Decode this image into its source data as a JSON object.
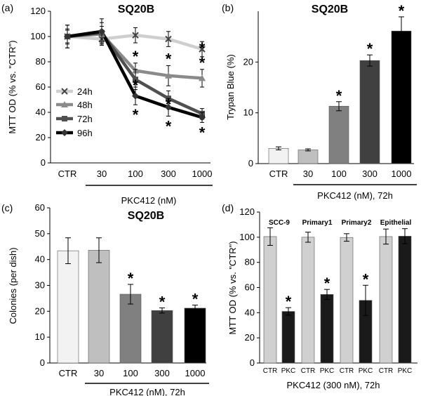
{
  "chart_data": [
    {
      "panel": "(a)",
      "type": "line",
      "title": "SQ20B",
      "ylabel": "MTT OD (% vs. \"CTR\")",
      "ylim": [
        0,
        120
      ],
      "yticks": [
        0,
        20,
        40,
        60,
        80,
        100,
        120
      ],
      "categories": [
        "CTR",
        "30",
        "100",
        "300",
        "1000"
      ],
      "xgroup_label": "PKC412 (nM)",
      "legend_position": "left-middle",
      "series": [
        {
          "name": "24h",
          "color": "#cfcfcf",
          "marker": "x",
          "values": [
            100,
            98,
            101,
            98,
            90
          ],
          "errors": [
            5,
            5,
            6,
            6,
            6
          ],
          "stars": [
            false,
            false,
            false,
            false,
            true
          ]
        },
        {
          "name": "48h",
          "color": "#8a8a8a",
          "marker": "triangle",
          "values": [
            100,
            102,
            73,
            69,
            67
          ],
          "errors": [
            6,
            6,
            6,
            8,
            7
          ],
          "stars": [
            false,
            false,
            true,
            true,
            true
          ]
        },
        {
          "name": "72h",
          "color": "#505050",
          "marker": "square",
          "values": [
            100,
            103,
            66,
            51,
            39
          ],
          "errors": [
            9,
            8,
            8,
            6,
            4
          ],
          "stars": [
            false,
            false,
            true,
            true,
            true
          ]
        },
        {
          "name": "96h",
          "color": "#000000",
          "marker": "diamond",
          "values": [
            100,
            104,
            53,
            44,
            36
          ],
          "errors": [
            9,
            10,
            7,
            7,
            4
          ],
          "stars": [
            false,
            false,
            true,
            true,
            true
          ]
        }
      ]
    },
    {
      "panel": "(b)",
      "type": "bar",
      "title": "SQ20B",
      "ylabel": "Trypan Blue (%)",
      "ylim": [
        0,
        30
      ],
      "yticks": [
        0,
        10,
        20
      ],
      "categories": [
        "CTR",
        "30",
        "100",
        "300",
        "1000"
      ],
      "xgroup_label": "PKC412 (nM), 72h",
      "values": [
        3.0,
        2.7,
        11.3,
        20.3,
        26.1
      ],
      "errors": [
        0.3,
        0.2,
        0.9,
        1.1,
        2.8
      ],
      "colors": [
        "#f2f2f2",
        "#bfbfbf",
        "#808080",
        "#404040",
        "#000000"
      ],
      "stars": [
        false,
        false,
        true,
        true,
        true
      ]
    },
    {
      "panel": "(c)",
      "type": "bar",
      "title": "SQ20B",
      "ylabel": "Colonies (per dish)",
      "ylim": [
        0,
        60
      ],
      "yticks": [
        0,
        10,
        20,
        30,
        40,
        50,
        60
      ],
      "categories": [
        "CTR",
        "30",
        "100",
        "300",
        "1000"
      ],
      "xgroup_label": "PKC412 (nM), 72h",
      "values": [
        43.4,
        43.6,
        26.6,
        20.3,
        21.2
      ],
      "errors": [
        5.0,
        4.8,
        3.8,
        1.0,
        1.2
      ],
      "colors": [
        "#f2f2f2",
        "#bfbfbf",
        "#808080",
        "#404040",
        "#000000"
      ],
      "stars": [
        false,
        false,
        true,
        true,
        true
      ]
    },
    {
      "panel": "(d)",
      "type": "bar",
      "ylabel": "MTT OD (% vs. \"CTR\")",
      "ylim": [
        0,
        120
      ],
      "yticks": [
        0,
        20,
        40,
        60,
        80,
        100,
        120
      ],
      "groups": [
        "SCC-9",
        "Primary1",
        "Primary2",
        "Epithelial"
      ],
      "categories": [
        "CTR",
        "PKC",
        "CTR",
        "PKC",
        "CTR",
        "PKC",
        "CTR",
        "PKC"
      ],
      "values": [
        100.5,
        41.0,
        100.0,
        54.5,
        99.8,
        49.8,
        100.5,
        100.8
      ],
      "errors": [
        7.0,
        3.0,
        4.0,
        4.0,
        3.0,
        12.0,
        6.0,
        6.0
      ],
      "colors": [
        "#d0d0d0",
        "#1a1a1a",
        "#d0d0d0",
        "#1a1a1a",
        "#d0d0d0",
        "#1a1a1a",
        "#d0d0d0",
        "#1a1a1a"
      ],
      "stars": [
        false,
        true,
        false,
        true,
        false,
        true,
        false,
        false
      ],
      "xgroup_label": "PKC412 (300 nM), 72h"
    }
  ]
}
